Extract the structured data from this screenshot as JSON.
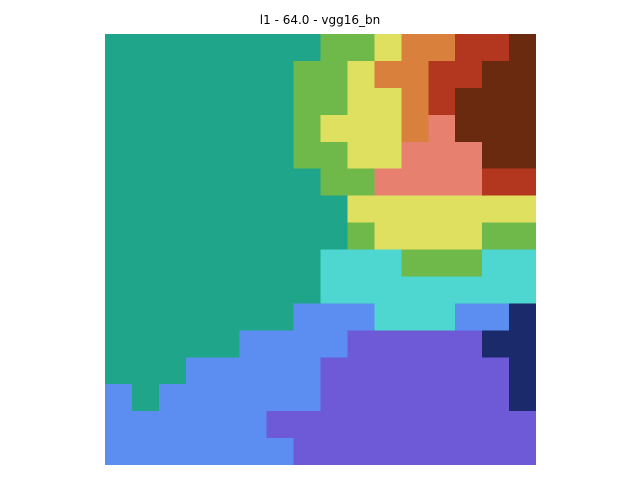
{
  "figure": {
    "title": "l1 - 64.0 - vgg16_bn"
  },
  "image": {
    "description_tag": "pixelated-attribution-heatmap",
    "palette": {
      "teal": "#1fa68a",
      "green": "#6fb84a",
      "yellow": "#e0e060",
      "orange": "#d9803c",
      "red": "#b3361e",
      "dark_red": "#6a2a10",
      "salmon": "#e88070",
      "cyan": "#4ed6d0",
      "blue": "#5b8ef0",
      "purple": "#6e5ad6",
      "navy": "#1a2a6a"
    }
  }
}
